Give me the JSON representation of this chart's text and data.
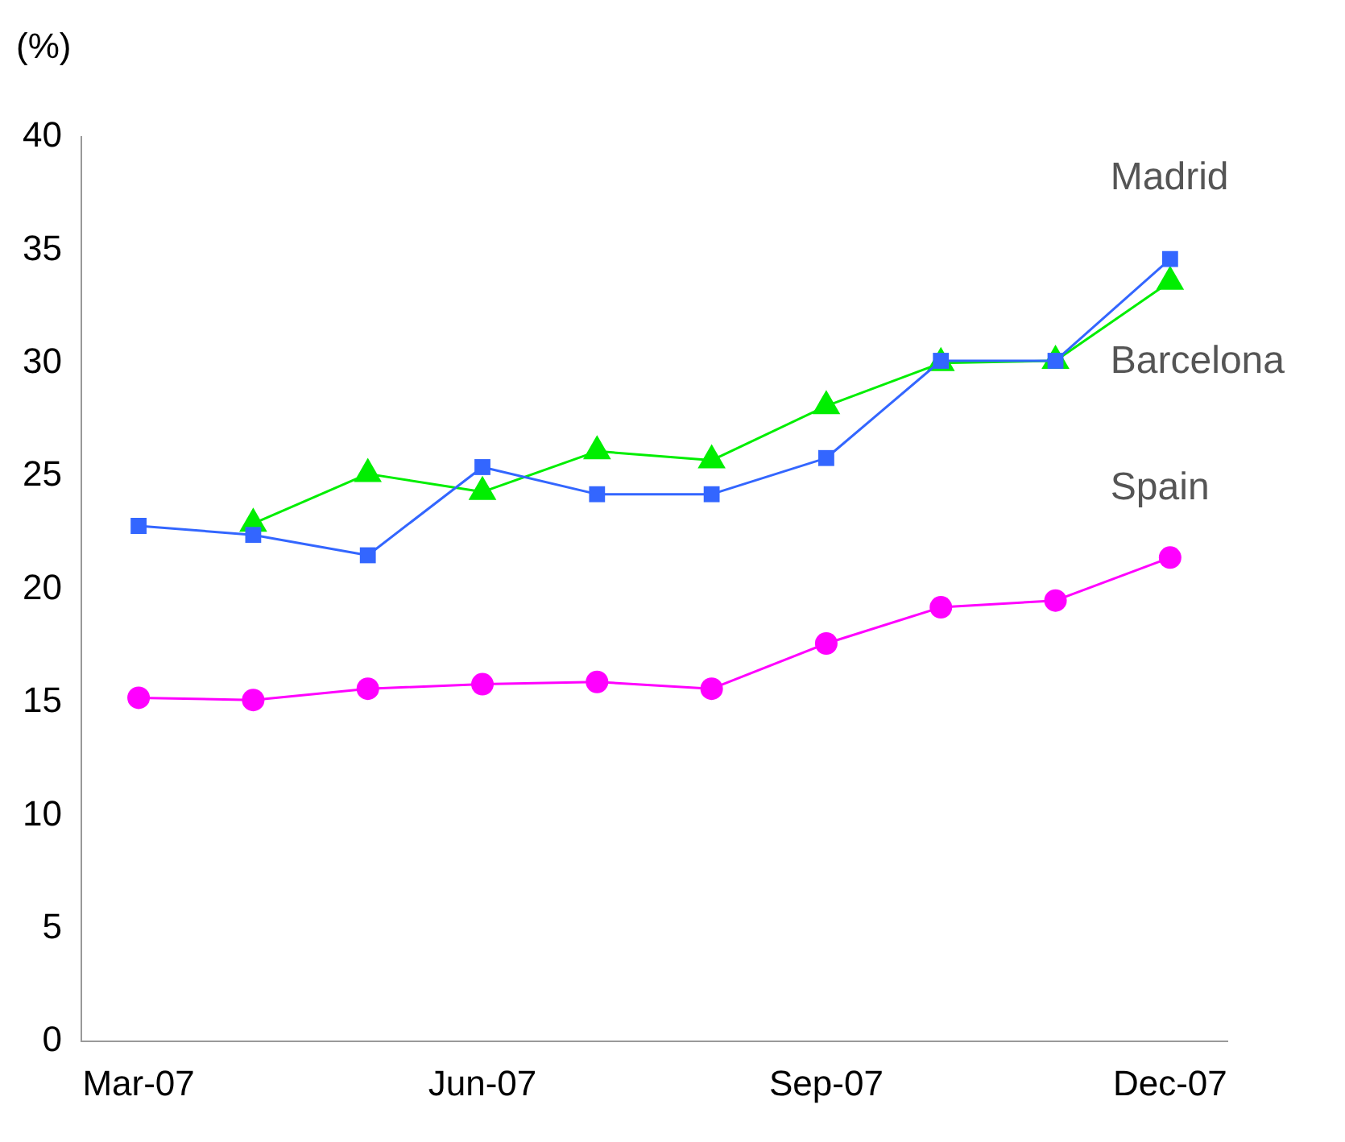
{
  "chart_data": {
    "type": "line",
    "ylabel": "(%)",
    "categories": [
      "Mar-07",
      null,
      null,
      "Jun-07",
      null,
      null,
      "Sep-07",
      null,
      null,
      "Dec-07"
    ],
    "series": [
      {
        "name": "Madrid",
        "color": "#3366ff",
        "marker": "square",
        "values": [
          22.8,
          22.4,
          21.5,
          25.4,
          24.2,
          24.2,
          25.8,
          30.1,
          30.1,
          34.6
        ]
      },
      {
        "name": "Barcelona",
        "color": "#00ee00",
        "marker": "triangle",
        "values": [
          null,
          22.9,
          25.1,
          24.3,
          26.1,
          25.7,
          28.1,
          30.0,
          30.1,
          33.6
        ]
      },
      {
        "name": "Spain",
        "color": "#ff00ff",
        "marker": "circle",
        "values": [
          15.2,
          15.1,
          15.6,
          15.8,
          15.9,
          15.6,
          17.6,
          19.2,
          19.5,
          21.4
        ]
      }
    ],
    "ylim": [
      0,
      40
    ],
    "yticks": [
      0,
      5,
      10,
      15,
      20,
      25,
      30,
      35,
      40
    ],
    "grid": false,
    "legend": false
  }
}
